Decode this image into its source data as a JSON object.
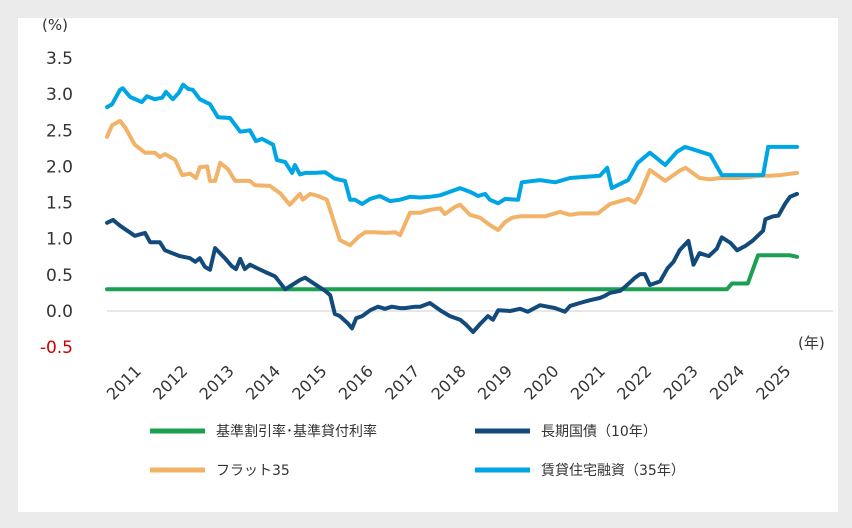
{
  "chart_data": {
    "type": "line",
    "title": "",
    "ylabel": "(%)",
    "xlabel": "(年)",
    "ylim": [
      -0.5,
      3.5
    ],
    "xlim": [
      2010.7,
      2025.57
    ],
    "yticks": [
      "3.5",
      "3.0",
      "2.5",
      "2.0",
      "1.5",
      "1.0",
      "0.5",
      "0.0",
      "-0.5"
    ],
    "ytick_values": [
      3.5,
      3.0,
      2.5,
      2.0,
      1.5,
      1.0,
      0.5,
      0.0,
      -0.5
    ],
    "xticks": [
      "2011",
      "2012",
      "2013",
      "2014",
      "2015",
      "2016",
      "2017",
      "2018",
      "2019",
      "2020",
      "2021",
      "2022",
      "2023",
      "2024",
      "2025"
    ],
    "grid": false,
    "legend_placement": "bottom",
    "series": [
      {
        "name": "基準割引率･基準貸付利率",
        "color": "#1aa050",
        "points": [
          [
            2010.7,
            0.3
          ],
          [
            2024.06,
            0.3
          ],
          [
            2024.17,
            0.38
          ],
          [
            2024.51,
            0.38
          ],
          [
            2024.73,
            0.77
          ],
          [
            2025.42,
            0.77
          ],
          [
            2025.57,
            0.75
          ]
        ]
      },
      {
        "name": "長期国債（10年）",
        "color": "#134a7c",
        "points": [
          [
            2010.7,
            1.22
          ],
          [
            2010.83,
            1.26
          ],
          [
            2010.98,
            1.18
          ],
          [
            2011.3,
            1.04
          ],
          [
            2011.52,
            1.08
          ],
          [
            2011.63,
            0.95
          ],
          [
            2011.84,
            0.95
          ],
          [
            2011.95,
            0.84
          ],
          [
            2012.27,
            0.76
          ],
          [
            2012.49,
            0.73
          ],
          [
            2012.6,
            0.68
          ],
          [
            2012.7,
            0.73
          ],
          [
            2012.81,
            0.61
          ],
          [
            2012.92,
            0.57
          ],
          [
            2013.03,
            0.87
          ],
          [
            2013.24,
            0.73
          ],
          [
            2013.39,
            0.62
          ],
          [
            2013.48,
            0.58
          ],
          [
            2013.57,
            0.72
          ],
          [
            2013.67,
            0.58
          ],
          [
            2013.78,
            0.64
          ],
          [
            2014.11,
            0.54
          ],
          [
            2014.32,
            0.48
          ],
          [
            2014.43,
            0.39
          ],
          [
            2014.54,
            0.3
          ],
          [
            2014.69,
            0.36
          ],
          [
            2014.86,
            0.43
          ],
          [
            2014.97,
            0.46
          ],
          [
            2015.18,
            0.37
          ],
          [
            2015.4,
            0.28
          ],
          [
            2015.51,
            0.22
          ],
          [
            2015.61,
            -0.04
          ],
          [
            2015.72,
            -0.07
          ],
          [
            2015.89,
            -0.17
          ],
          [
            2015.98,
            -0.24
          ],
          [
            2016.07,
            -0.1
          ],
          [
            2016.2,
            -0.07
          ],
          [
            2016.37,
            0.01
          ],
          [
            2016.54,
            0.06
          ],
          [
            2016.69,
            0.03
          ],
          [
            2016.84,
            0.06
          ],
          [
            2017.02,
            0.04
          ],
          [
            2017.12,
            0.04
          ],
          [
            2017.34,
            0.06
          ],
          [
            2017.45,
            0.06
          ],
          [
            2017.66,
            0.11
          ],
          [
            2017.88,
            0.01
          ],
          [
            2018.09,
            -0.07
          ],
          [
            2018.31,
            -0.12
          ],
          [
            2018.44,
            -0.19
          ],
          [
            2018.59,
            -0.29
          ],
          [
            2018.74,
            -0.18
          ],
          [
            2018.91,
            -0.07
          ],
          [
            2019.02,
            -0.12
          ],
          [
            2019.13,
            0.01
          ],
          [
            2019.39,
            0.0
          ],
          [
            2019.6,
            0.03
          ],
          [
            2019.77,
            -0.01
          ],
          [
            2020.03,
            0.08
          ],
          [
            2020.36,
            0.04
          ],
          [
            2020.57,
            -0.01
          ],
          [
            2020.68,
            0.07
          ],
          [
            2020.89,
            0.11
          ],
          [
            2021.11,
            0.15
          ],
          [
            2021.32,
            0.18
          ],
          [
            2021.43,
            0.21
          ],
          [
            2021.54,
            0.25
          ],
          [
            2021.76,
            0.28
          ],
          [
            2021.86,
            0.33
          ],
          [
            2022.08,
            0.46
          ],
          [
            2022.19,
            0.51
          ],
          [
            2022.29,
            0.51
          ],
          [
            2022.4,
            0.36
          ],
          [
            2022.62,
            0.41
          ],
          [
            2022.78,
            0.59
          ],
          [
            2022.91,
            0.68
          ],
          [
            2023.04,
            0.84
          ],
          [
            2023.23,
            0.97
          ],
          [
            2023.34,
            0.64
          ],
          [
            2023.47,
            0.8
          ],
          [
            2023.67,
            0.76
          ],
          [
            2023.84,
            0.86
          ],
          [
            2023.95,
            1.02
          ],
          [
            2024.14,
            0.94
          ],
          [
            2024.28,
            0.84
          ],
          [
            2024.46,
            0.9
          ],
          [
            2024.61,
            0.97
          ],
          [
            2024.84,
            1.11
          ],
          [
            2024.89,
            1.27
          ],
          [
            2025.06,
            1.31
          ],
          [
            2025.17,
            1.32
          ],
          [
            2025.32,
            1.49
          ],
          [
            2025.42,
            1.58
          ],
          [
            2025.57,
            1.62
          ]
        ]
      },
      {
        "name": "フラット35",
        "color": "#f2b268",
        "points": [
          [
            2010.7,
            2.41
          ],
          [
            2010.81,
            2.57
          ],
          [
            2010.98,
            2.63
          ],
          [
            2011.09,
            2.54
          ],
          [
            2011.3,
            2.3
          ],
          [
            2011.52,
            2.19
          ],
          [
            2011.73,
            2.19
          ],
          [
            2011.84,
            2.13
          ],
          [
            2011.95,
            2.17
          ],
          [
            2012.17,
            2.09
          ],
          [
            2012.32,
            1.88
          ],
          [
            2012.49,
            1.9
          ],
          [
            2012.62,
            1.84
          ],
          [
            2012.7,
            1.99
          ],
          [
            2012.86,
            2.0
          ],
          [
            2012.92,
            1.8
          ],
          [
            2013.03,
            1.8
          ],
          [
            2013.14,
            2.05
          ],
          [
            2013.31,
            1.96
          ],
          [
            2013.46,
            1.8
          ],
          [
            2013.78,
            1.8
          ],
          [
            2013.89,
            1.74
          ],
          [
            2014.21,
            1.73
          ],
          [
            2014.43,
            1.63
          ],
          [
            2014.64,
            1.47
          ],
          [
            2014.86,
            1.62
          ],
          [
            2014.92,
            1.54
          ],
          [
            2015.08,
            1.62
          ],
          [
            2015.25,
            1.59
          ],
          [
            2015.44,
            1.54
          ],
          [
            2015.72,
            0.98
          ],
          [
            2015.94,
            0.91
          ],
          [
            2016.11,
            1.02
          ],
          [
            2016.26,
            1.09
          ],
          [
            2016.48,
            1.09
          ],
          [
            2016.69,
            1.08
          ],
          [
            2016.91,
            1.09
          ],
          [
            2017.02,
            1.05
          ],
          [
            2017.23,
            1.36
          ],
          [
            2017.45,
            1.36
          ],
          [
            2017.66,
            1.4
          ],
          [
            2017.88,
            1.42
          ],
          [
            2017.98,
            1.34
          ],
          [
            2018.2,
            1.44
          ],
          [
            2018.31,
            1.47
          ],
          [
            2018.42,
            1.4
          ],
          [
            2018.52,
            1.33
          ],
          [
            2018.74,
            1.29
          ],
          [
            2018.95,
            1.19
          ],
          [
            2019.13,
            1.12
          ],
          [
            2019.28,
            1.23
          ],
          [
            2019.43,
            1.29
          ],
          [
            2019.6,
            1.31
          ],
          [
            2019.82,
            1.31
          ],
          [
            2020.14,
            1.31
          ],
          [
            2020.46,
            1.37
          ],
          [
            2020.68,
            1.33
          ],
          [
            2020.89,
            1.35
          ],
          [
            2021.28,
            1.35
          ],
          [
            2021.54,
            1.48
          ],
          [
            2021.93,
            1.55
          ],
          [
            2022.08,
            1.5
          ],
          [
            2022.19,
            1.62
          ],
          [
            2022.4,
            1.95
          ],
          [
            2022.73,
            1.8
          ],
          [
            2023.04,
            1.94
          ],
          [
            2023.17,
            1.98
          ],
          [
            2023.47,
            1.84
          ],
          [
            2023.7,
            1.82
          ],
          [
            2023.9,
            1.84
          ],
          [
            2024.34,
            1.84
          ],
          [
            2024.77,
            1.87
          ],
          [
            2024.98,
            1.87
          ],
          [
            2025.2,
            1.88
          ],
          [
            2025.57,
            1.91
          ]
        ]
      },
      {
        "name": "賃貸住宅融資（35年）",
        "color": "#00a6e4",
        "points": [
          [
            2010.7,
            2.82
          ],
          [
            2010.81,
            2.86
          ],
          [
            2010.98,
            3.06
          ],
          [
            2011.04,
            3.08
          ],
          [
            2011.2,
            2.96
          ],
          [
            2011.45,
            2.89
          ],
          [
            2011.56,
            2.97
          ],
          [
            2011.73,
            2.93
          ],
          [
            2011.89,
            2.95
          ],
          [
            2011.97,
            3.03
          ],
          [
            2012.12,
            2.93
          ],
          [
            2012.25,
            3.02
          ],
          [
            2012.34,
            3.13
          ],
          [
            2012.45,
            3.07
          ],
          [
            2012.55,
            3.06
          ],
          [
            2012.7,
            2.93
          ],
          [
            2012.92,
            2.86
          ],
          [
            2013.09,
            2.68
          ],
          [
            2013.35,
            2.67
          ],
          [
            2013.57,
            2.48
          ],
          [
            2013.78,
            2.5
          ],
          [
            2013.91,
            2.35
          ],
          [
            2014.04,
            2.38
          ],
          [
            2014.28,
            2.3
          ],
          [
            2014.36,
            2.09
          ],
          [
            2014.54,
            2.06
          ],
          [
            2014.69,
            1.91
          ],
          [
            2014.75,
            2.02
          ],
          [
            2014.86,
            1.89
          ],
          [
            2014.97,
            1.91
          ],
          [
            2015.18,
            1.91
          ],
          [
            2015.4,
            1.92
          ],
          [
            2015.61,
            1.83
          ],
          [
            2015.83,
            1.8
          ],
          [
            2015.94,
            1.54
          ],
          [
            2016.04,
            1.54
          ],
          [
            2016.2,
            1.48
          ],
          [
            2016.37,
            1.55
          ],
          [
            2016.58,
            1.59
          ],
          [
            2016.8,
            1.52
          ],
          [
            2017.02,
            1.54
          ],
          [
            2017.23,
            1.58
          ],
          [
            2017.45,
            1.57
          ],
          [
            2017.66,
            1.58
          ],
          [
            2017.88,
            1.6
          ],
          [
            2018.31,
            1.7
          ],
          [
            2018.52,
            1.65
          ],
          [
            2018.7,
            1.59
          ],
          [
            2018.85,
            1.62
          ],
          [
            2018.95,
            1.54
          ],
          [
            2019.13,
            1.49
          ],
          [
            2019.28,
            1.55
          ],
          [
            2019.56,
            1.54
          ],
          [
            2019.64,
            1.78
          ],
          [
            2020.03,
            1.81
          ],
          [
            2020.36,
            1.78
          ],
          [
            2020.68,
            1.84
          ],
          [
            2020.89,
            1.85
          ],
          [
            2021.32,
            1.87
          ],
          [
            2021.48,
            1.98
          ],
          [
            2021.58,
            1.7
          ],
          [
            2021.93,
            1.81
          ],
          [
            2022.14,
            2.05
          ],
          [
            2022.4,
            2.19
          ],
          [
            2022.73,
            2.02
          ],
          [
            2022.98,
            2.2
          ],
          [
            2023.16,
            2.27
          ],
          [
            2023.7,
            2.16
          ],
          [
            2023.95,
            1.88
          ],
          [
            2024.84,
            1.88
          ],
          [
            2024.95,
            2.27
          ],
          [
            2025.57,
            2.27
          ]
        ]
      }
    ]
  }
}
